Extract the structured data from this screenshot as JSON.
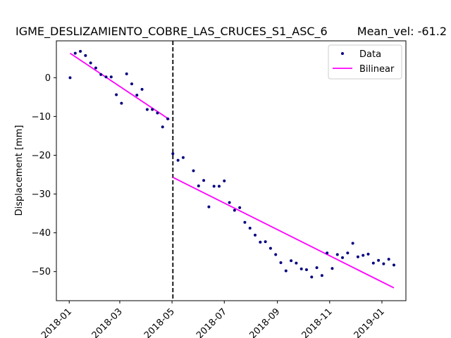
{
  "chart_data": {
    "type": "scatter",
    "title": "IGME_DESLIZAMIENTO_COBRE_LAS_CRUCES_S1_ASC_6",
    "mean_vel_label": "Mean_vel: -61.2",
    "xlabel": "",
    "ylabel": "Displacement [mm]",
    "xlim": [
      "2017-12-17",
      "2019-01-29"
    ],
    "ylim": [
      -57.5,
      9.5
    ],
    "x_ticks": [
      "2018-01",
      "2018-03",
      "2018-05",
      "2018-07",
      "2018-09",
      "2018-11",
      "2019-01"
    ],
    "x_tick_dates": [
      "2018-01-01",
      "2018-03-01",
      "2018-05-01",
      "2018-07-01",
      "2018-09-01",
      "2018-11-01",
      "2019-01-01"
    ],
    "y_ticks": [
      0,
      -10,
      -20,
      -30,
      -40,
      -50
    ],
    "grid": false,
    "legend_position": "top-right",
    "breakpoint_date": "2018-05-02",
    "series": [
      {
        "name": "Data",
        "style": "points",
        "color": "#000080",
        "points": [
          [
            "2018-01-02",
            0.0
          ],
          [
            "2018-01-08",
            6.3
          ],
          [
            "2018-01-14",
            6.8
          ],
          [
            "2018-01-20",
            5.7
          ],
          [
            "2018-01-26",
            3.8
          ],
          [
            "2018-02-01",
            2.5
          ],
          [
            "2018-02-07",
            0.8
          ],
          [
            "2018-02-13",
            0.2
          ],
          [
            "2018-02-19",
            0.2
          ],
          [
            "2018-02-25",
            -4.4
          ],
          [
            "2018-03-03",
            -6.6
          ],
          [
            "2018-03-09",
            1.0
          ],
          [
            "2018-03-15",
            -1.6
          ],
          [
            "2018-03-21",
            -4.5
          ],
          [
            "2018-03-27",
            -3.0
          ],
          [
            "2018-04-02",
            -8.2
          ],
          [
            "2018-04-08",
            -8.2
          ],
          [
            "2018-04-14",
            -9.1
          ],
          [
            "2018-04-20",
            -12.7
          ],
          [
            "2018-04-26",
            -10.6
          ],
          [
            "2018-05-02",
            -19.6
          ],
          [
            "2018-05-08",
            -21.3
          ],
          [
            "2018-05-14",
            -20.6
          ],
          [
            "2018-05-26",
            -24.0
          ],
          [
            "2018-06-01",
            -27.9
          ],
          [
            "2018-06-07",
            -26.5
          ],
          [
            "2018-06-13",
            -33.3
          ],
          [
            "2018-06-19",
            -28.0
          ],
          [
            "2018-06-25",
            -28.0
          ],
          [
            "2018-07-01",
            -26.6
          ],
          [
            "2018-07-07",
            -32.2
          ],
          [
            "2018-07-13",
            -34.2
          ],
          [
            "2018-07-19",
            -33.5
          ],
          [
            "2018-07-25",
            -37.3
          ],
          [
            "2018-07-31",
            -38.8
          ],
          [
            "2018-08-06",
            -40.6
          ],
          [
            "2018-08-12",
            -42.4
          ],
          [
            "2018-08-18",
            -42.3
          ],
          [
            "2018-08-24",
            -44.0
          ],
          [
            "2018-08-30",
            -45.6
          ],
          [
            "2018-09-05",
            -47.7
          ],
          [
            "2018-09-11",
            -49.8
          ],
          [
            "2018-09-17",
            -47.2
          ],
          [
            "2018-09-23",
            -47.8
          ],
          [
            "2018-09-29",
            -49.3
          ],
          [
            "2018-10-05",
            -49.5
          ],
          [
            "2018-10-11",
            -51.4
          ],
          [
            "2018-10-17",
            -49.0
          ],
          [
            "2018-10-23",
            -51.0
          ],
          [
            "2018-10-29",
            -45.2
          ],
          [
            "2018-11-04",
            -49.2
          ],
          [
            "2018-11-10",
            -45.6
          ],
          [
            "2018-11-16",
            -46.4
          ],
          [
            "2018-11-22",
            -45.2
          ],
          [
            "2018-11-28",
            -42.7
          ],
          [
            "2018-12-04",
            -46.2
          ],
          [
            "2018-12-10",
            -45.8
          ],
          [
            "2018-12-16",
            -45.5
          ],
          [
            "2018-12-22",
            -47.8
          ],
          [
            "2018-12-28",
            -47.1
          ],
          [
            "2019-01-03",
            -48.0
          ],
          [
            "2019-01-09",
            -46.8
          ],
          [
            "2019-01-15",
            -48.3
          ]
        ]
      },
      {
        "name": "Bilinear",
        "style": "line",
        "color": "#ff00ff",
        "segments": [
          [
            [
              "2018-01-02",
              6.3
            ],
            [
              "2018-04-28",
              -10.8
            ]
          ],
          [
            [
              "2018-05-02",
              -25.7
            ],
            [
              "2019-01-15",
              -54.2
            ]
          ]
        ]
      }
    ]
  }
}
